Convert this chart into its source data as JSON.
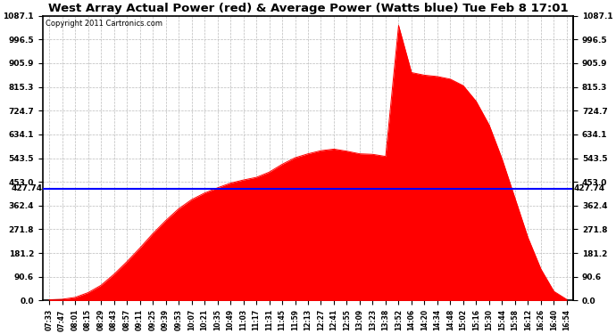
{
  "title": "West Array Actual Power (red) & Average Power (Watts blue) Tue Feb 8 17:01",
  "copyright": "Copyright 2011 Cartronics.com",
  "avg_power": 427.74,
  "ylim": [
    0.0,
    1087.1
  ],
  "yticks": [
    0.0,
    90.6,
    181.2,
    271.8,
    362.4,
    453.0,
    543.5,
    634.1,
    724.7,
    815.3,
    905.9,
    996.5,
    1087.1
  ],
  "fill_color": "#ff0000",
  "line_color": "#0000ff",
  "background_color": "#ffffff",
  "grid_color": "#bbbbbb",
  "x_labels": [
    "07:33",
    "07:47",
    "08:01",
    "08:15",
    "08:29",
    "08:43",
    "08:57",
    "09:11",
    "09:25",
    "09:39",
    "09:53",
    "10:07",
    "10:21",
    "10:35",
    "10:49",
    "11:03",
    "11:17",
    "11:31",
    "11:45",
    "11:59",
    "12:13",
    "12:27",
    "12:41",
    "12:55",
    "13:09",
    "13:23",
    "13:38",
    "13:52",
    "14:06",
    "14:20",
    "14:34",
    "14:48",
    "15:02",
    "15:16",
    "15:30",
    "15:44",
    "15:58",
    "16:12",
    "16:26",
    "16:40",
    "16:54"
  ],
  "power_values": [
    3,
    5,
    12,
    30,
    58,
    100,
    148,
    200,
    255,
    305,
    350,
    385,
    410,
    430,
    448,
    460,
    470,
    490,
    520,
    545,
    560,
    572,
    578,
    570,
    560,
    558,
    550,
    1050,
    870,
    860,
    855,
    845,
    820,
    760,
    670,
    540,
    390,
    240,
    120,
    35,
    4
  ],
  "figwidth": 6.9,
  "figheight": 3.75,
  "dpi": 100
}
